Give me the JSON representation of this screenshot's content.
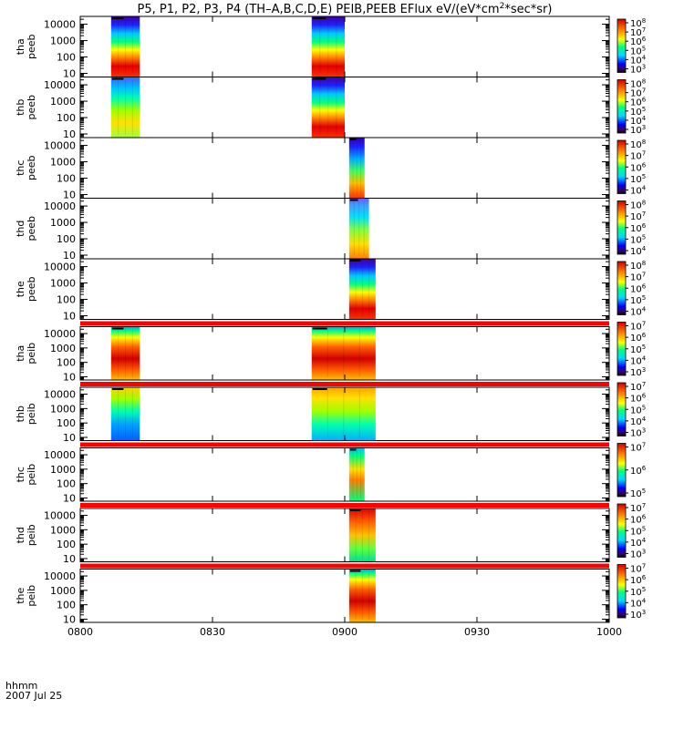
{
  "chart_data": {
    "type": "heatmap",
    "title": "P5, P1, P2, P3, P4 (TH-A,B,C,D,E) PEIB,PEEB EFlux eV/(eV*cm^2*sec*sr)",
    "title_parts": {
      "prefix": "P5, P1, P2, P3, P4 (TH–A,B,C,D,E) PEIB,PEEB EFlux eV/(eV*cm",
      "exponent": "2",
      "suffix": "*sec*sr)"
    },
    "xlabel": "hhmm",
    "date_label": "2007 Jul 25",
    "xlim_minutes": [
      480,
      600
    ],
    "xticks": [
      {
        "t": 480,
        "label": "0800"
      },
      {
        "t": 510,
        "label": "0830"
      },
      {
        "t": 540,
        "label": "0900"
      },
      {
        "t": 570,
        "label": "0930"
      },
      {
        "t": 600,
        "label": "1000"
      }
    ],
    "y_scale": "log",
    "ylim_eV": [
      6,
      30000
    ],
    "yticks": [
      {
        "v": 10,
        "label": "10"
      },
      {
        "v": 100,
        "label": "100"
      },
      {
        "v": 1000,
        "label": "1000"
      },
      {
        "v": 10000,
        "label": "10000"
      }
    ],
    "panels": [
      {
        "probe": "tha",
        "instrument": "peeb",
        "cbar_exponents": [
          "3",
          "4",
          "5",
          "6",
          "7",
          "8"
        ],
        "bursts": [
          {
            "start": 487.0,
            "end": 493.5,
            "style": "e_hot"
          },
          {
            "start": 532.5,
            "end": 540.0,
            "style": "e_hot"
          }
        ],
        "red_bar": false
      },
      {
        "probe": "thb",
        "instrument": "peeb",
        "cbar_exponents": [
          "3",
          "4",
          "5",
          "6",
          "7",
          "8"
        ],
        "bursts": [
          {
            "start": 487.0,
            "end": 493.5,
            "style": "e_cool"
          },
          {
            "start": 532.5,
            "end": 540.0,
            "style": "e_hot"
          }
        ],
        "red_bar": false
      },
      {
        "probe": "thc",
        "instrument": "peeb",
        "cbar_exponents": [
          "4",
          "5",
          "6",
          "7",
          "8"
        ],
        "bursts": [
          {
            "start": 541.0,
            "end": 544.5,
            "style": "e_narrow"
          }
        ],
        "red_bar": false
      },
      {
        "probe": "thd",
        "instrument": "peeb",
        "cbar_exponents": [
          "4",
          "5",
          "6",
          "7",
          "8"
        ],
        "bursts": [
          {
            "start": 541.0,
            "end": 545.5,
            "style": "e_mix"
          }
        ],
        "red_bar": false
      },
      {
        "probe": "the",
        "instrument": "peeb",
        "cbar_exponents": [
          "4",
          "5",
          "6",
          "7",
          "8"
        ],
        "bursts": [
          {
            "start": 541.0,
            "end": 547.0,
            "style": "e_hot"
          }
        ],
        "red_bar": false
      },
      {
        "probe": "tha",
        "instrument": "peib",
        "cbar_exponents": [
          "3",
          "4",
          "5",
          "6",
          "7"
        ],
        "bursts": [
          {
            "start": 487.0,
            "end": 493.5,
            "style": "i_hot"
          },
          {
            "start": 532.5,
            "end": 547.0,
            "style": "i_hot"
          }
        ],
        "red_bar": true
      },
      {
        "probe": "thb",
        "instrument": "peib",
        "cbar_exponents": [
          "3",
          "4",
          "5",
          "6",
          "7"
        ],
        "bursts": [
          {
            "start": 487.0,
            "end": 493.5,
            "style": "i_cool"
          },
          {
            "start": 532.5,
            "end": 547.0,
            "style": "i_warm"
          }
        ],
        "red_bar": true
      },
      {
        "probe": "thc",
        "instrument": "peib",
        "cbar_exponents": [
          "5",
          "6",
          "7"
        ],
        "bursts": [
          {
            "start": 541.0,
            "end": 544.5,
            "style": "i_narrow"
          }
        ],
        "red_bar": true
      },
      {
        "probe": "thd",
        "instrument": "peib",
        "cbar_exponents": [
          "3",
          "4",
          "5",
          "6",
          "7"
        ],
        "bursts": [
          {
            "start": 541.0,
            "end": 547.0,
            "style": "i_mix"
          }
        ],
        "red_bar": true
      },
      {
        "probe": "the",
        "instrument": "peib",
        "cbar_exponents": [
          "3",
          "4",
          "5",
          "6",
          "7"
        ],
        "bursts": [
          {
            "start": 541.0,
            "end": 547.0,
            "style": "i_hot"
          }
        ],
        "red_bar": true
      }
    ]
  }
}
